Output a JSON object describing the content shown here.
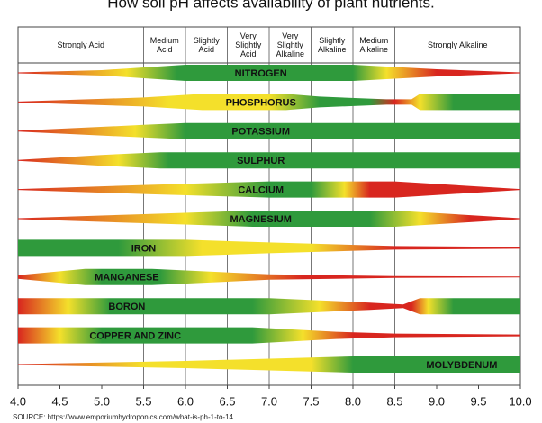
{
  "chart_data": {
    "type": "band",
    "title": "How soil pH affects availability of plant nutrients.",
    "zones": [
      {
        "label": "Strongly Acid",
        "from": 4.0,
        "to": 5.5
      },
      {
        "label": "Medium\nAcid",
        "from": 5.5,
        "to": 6.0
      },
      {
        "label": "Slightly\nAcid",
        "from": 6.0,
        "to": 6.5
      },
      {
        "label": "Very\nSlightly\nAcid",
        "from": 6.5,
        "to": 7.0
      },
      {
        "label": "Very\nSlightly\nAlkaline",
        "from": 7.0,
        "to": 7.5
      },
      {
        "label": "Slightly\nAlkaline",
        "from": 7.5,
        "to": 8.0
      },
      {
        "label": "Medium\nAlkaline",
        "from": 8.0,
        "to": 8.5
      },
      {
        "label": "Strongly Alkaline",
        "from": 8.5,
        "to": 10.0
      }
    ],
    "categories": [
      "NITROGEN",
      "PHOSPHORUS",
      "POTASSIUM",
      "SULPHUR",
      "CALCIUM",
      "MAGNESIUM",
      "IRON",
      "MANGANESE",
      "BORON",
      "COPPER AND ZINC",
      "MOLYBDENUM"
    ],
    "xlim": [
      4,
      10
    ],
    "xticks": [
      {
        "value": 4,
        "label": "4.0"
      },
      4.5,
      {
        "value": 5,
        "label": "5.0"
      },
      5.5,
      {
        "value": 6,
        "label": "6.0"
      },
      6.5,
      {
        "value": 7,
        "label": "7.0"
      },
      7.5,
      {
        "value": 8,
        "label": "8.0"
      },
      8.5,
      {
        "value": 9,
        "label": "9.0"
      },
      9.5,
      {
        "value": 10,
        "label": "10.0"
      }
    ],
    "source": "SOURCE: https://www.emporiumhydroponics.com/what-is-ph-1-to-14"
  }
}
